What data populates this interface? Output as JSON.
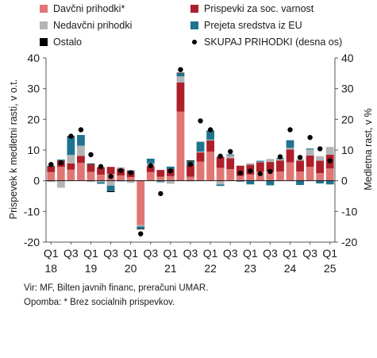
{
  "colors": {
    "davcni": "#e07673",
    "prispevki": "#ad1f2a",
    "nedavcni": "#b2b4b6",
    "eu": "#1e7390",
    "ostalo": "#000000",
    "skupaj": "#000000"
  },
  "notes": {
    "source": "Vir: MF, Bilten javnih financ, preračuni UMAR.",
    "footnote": "Opomba: * Brez socialnih prispevkov."
  },
  "chart_data": {
    "type": "bar",
    "stacked": true,
    "categories": [
      "2018Q1",
      "2018Q2",
      "2018Q3",
      "2018Q4",
      "2019Q1",
      "2019Q2",
      "2019Q3",
      "2019Q4",
      "2020Q1",
      "2020Q2",
      "2020Q3",
      "2020Q4",
      "2021Q1",
      "2021Q2",
      "2021Q3",
      "2021Q4",
      "2022Q1",
      "2022Q2",
      "2022Q3",
      "2022Q4",
      "2023Q1",
      "2023Q2",
      "2023Q3",
      "2023Q4",
      "2024Q1",
      "2024Q2",
      "2024Q3",
      "2024Q4",
      "2025Q1"
    ],
    "x_tick_labels": [
      {
        "index": 0,
        "label": "Q1",
        "year": "18"
      },
      {
        "index": 2,
        "label": "Q3",
        "year": ""
      },
      {
        "index": 4,
        "label": "Q1",
        "year": "19"
      },
      {
        "index": 6,
        "label": "Q3",
        "year": ""
      },
      {
        "index": 8,
        "label": "Q1",
        "year": "20"
      },
      {
        "index": 10,
        "label": "Q3",
        "year": ""
      },
      {
        "index": 12,
        "label": "Q1",
        "year": "21"
      },
      {
        "index": 14,
        "label": "Q3",
        "year": ""
      },
      {
        "index": 16,
        "label": "Q1",
        "year": "22"
      },
      {
        "index": 18,
        "label": "Q3",
        "year": ""
      },
      {
        "index": 20,
        "label": "Q1",
        "year": "23"
      },
      {
        "index": 22,
        "label": "Q3",
        "year": ""
      },
      {
        "index": 24,
        "label": "Q1",
        "year": "24"
      },
      {
        "index": 26,
        "label": "Q3",
        "year": ""
      },
      {
        "index": 28,
        "label": "Q1",
        "year": "25"
      }
    ],
    "ylabel": "Prispevek k medletni rasti, v o.t.",
    "y2label": "Medletna rast, v %",
    "ylim": [
      -20,
      40
    ],
    "yticks": [
      -20,
      -10,
      0,
      10,
      20,
      30,
      40
    ],
    "series": [
      {
        "name": "Davčni prihodki*",
        "color_key": "davcni",
        "values": [
          2.8,
          4.5,
          3.6,
          5.8,
          2.9,
          2.0,
          2.2,
          1.7,
          1.2,
          -14.5,
          2.8,
          1.3,
          1.5,
          22.5,
          1.3,
          6.2,
          9.5,
          4.2,
          3.8,
          1.6,
          2.0,
          3.0,
          3.0,
          3.0,
          6.0,
          3.0,
          4.5,
          2.5,
          4.0
        ]
      },
      {
        "name": "Prispevki za soc. varnost",
        "color_key": "prispevki",
        "values": [
          1.9,
          2.1,
          2.0,
          2.3,
          2.4,
          2.4,
          2.3,
          2.2,
          1.8,
          0.1,
          1.9,
          2.2,
          2.3,
          9.5,
          3.8,
          3.0,
          3.6,
          3.6,
          3.5,
          3.3,
          3.2,
          3.0,
          3.1,
          3.6,
          4.2,
          3.5,
          3.7,
          4.0,
          4.5
        ]
      },
      {
        "name": "Nedavčni prihodki",
        "color_key": "nedavcni",
        "values": [
          -0.4,
          -2.3,
          2.8,
          3.3,
          -0.4,
          -0.5,
          -1.6,
          0.5,
          -0.7,
          -0.4,
          1.0,
          -0.2,
          -1.0,
          2.0,
          -0.2,
          0.3,
          0.3,
          -1.2,
          1.0,
          0.1,
          0.5,
          0.2,
          1.0,
          0.5,
          0.5,
          0.5,
          2.0,
          1.5,
          2.5
        ]
      },
      {
        "name": "Prejeta sredstva iz EU",
        "color_key": "eu",
        "values": [
          0.2,
          0.3,
          5.8,
          3.5,
          0.2,
          -0.5,
          -1.8,
          -0.2,
          0.4,
          -0.7,
          1.5,
          -0.3,
          0.8,
          1.0,
          1.2,
          3.2,
          3.0,
          -0.5,
          0.3,
          -0.3,
          -1.2,
          0.3,
          -1.5,
          0.3,
          2.5,
          -1.4,
          0.3,
          -0.9,
          -1.2
        ]
      },
      {
        "name": "Ostalo",
        "color_key": "ostalo",
        "values": [
          0.0,
          0.0,
          0.3,
          0.0,
          0.1,
          0.0,
          -0.3,
          0.0,
          0.0,
          -0.2,
          0.0,
          0.0,
          0.0,
          0.2,
          0.3,
          0.0,
          0.0,
          0.0,
          0.0,
          0.0,
          0.0,
          0.0,
          0.0,
          0.0,
          0.0,
          0.0,
          0.0,
          0.0,
          0.0
        ]
      },
      {
        "name": "SKUPAJ PRIHODKI (desna os)",
        "color_key": "skupaj",
        "type": "scatter",
        "axis": "right",
        "values": [
          5.3,
          5.8,
          14.5,
          16.6,
          8.5,
          4.6,
          1.4,
          3.3,
          2.6,
          -17.3,
          4.9,
          -4.2,
          3.2,
          36.2,
          5.3,
          19.5,
          16.6,
          8.0,
          9.5,
          2.5,
          3.2,
          2.3,
          3.0,
          7.8,
          16.6,
          7.6,
          14.1,
          10.4,
          6.5
        ]
      }
    ],
    "legend": {
      "position": "top",
      "entries": [
        {
          "label": "Davčni prihodki*",
          "color_key": "davcni",
          "kind": "box"
        },
        {
          "label": "Prispevki za soc. varnost",
          "color_key": "prispevki",
          "kind": "box"
        },
        {
          "label": "Nedavčni prihodki",
          "color_key": "nedavcni",
          "kind": "box"
        },
        {
          "label": "Prejeta sredstva iz EU",
          "color_key": "eu",
          "kind": "box"
        },
        {
          "label": "Ostalo",
          "color_key": "ostalo",
          "kind": "box"
        },
        {
          "label": "SKUPAJ PRIHODKI (desna os)",
          "color_key": "skupaj",
          "kind": "dot"
        }
      ]
    },
    "grid": false
  }
}
